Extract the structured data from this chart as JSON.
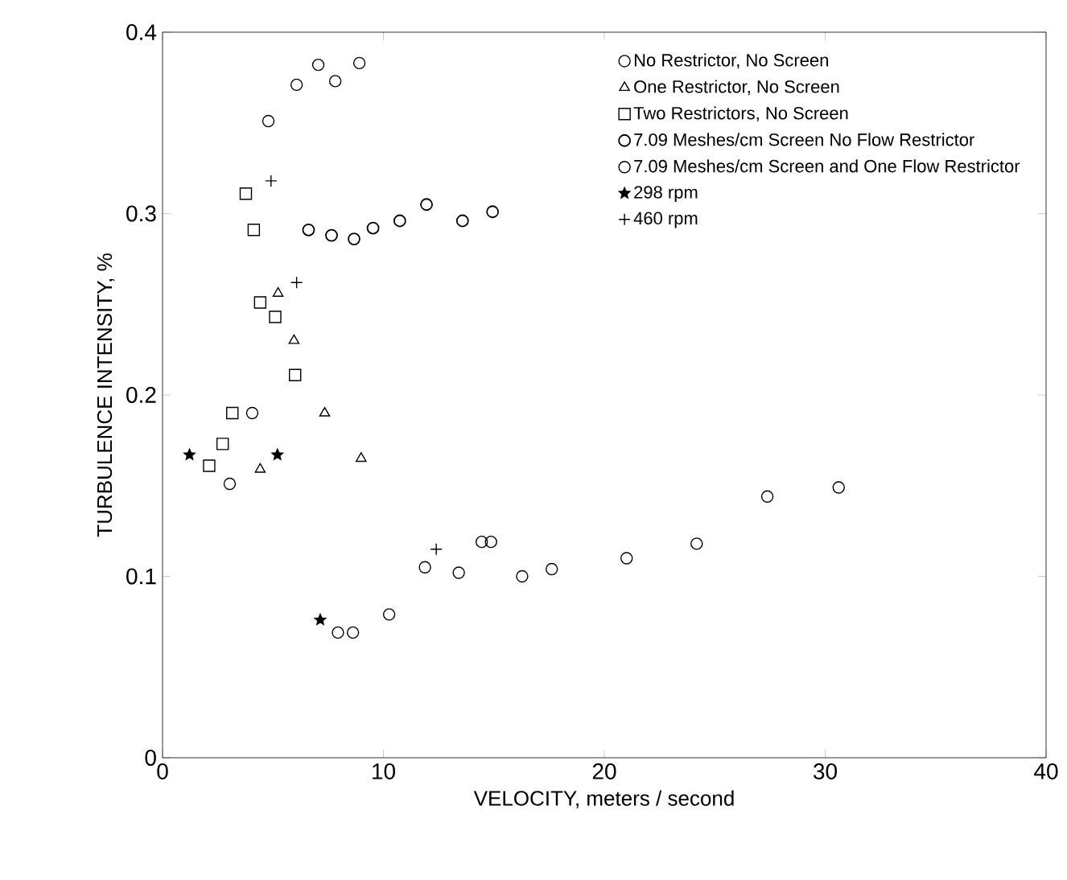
{
  "chart_data": {
    "type": "scatter",
    "xlabel": "VELOCITY, meters / second",
    "ylabel": "TURBULENCE INTENSITY, %",
    "xlim": [
      0,
      40
    ],
    "ylim": [
      0,
      0.4
    ],
    "xticks": [
      0,
      10,
      20,
      30,
      40
    ],
    "yticks": [
      0,
      0.1,
      0.2,
      0.3,
      0.4
    ],
    "grid": false,
    "legend": "top right",
    "series": [
      {
        "name": "No Restrictor, No Screen",
        "color": "#000000",
        "marker": "circle",
        "x": [
          7.94,
          8.62,
          10.26,
          11.88,
          13.41,
          14.45,
          14.87,
          16.28,
          17.62,
          21.01,
          24.18,
          27.38,
          30.61
        ],
        "values": [
          0.069,
          0.069,
          0.079,
          0.105,
          0.102,
          0.119,
          0.119,
          0.1,
          0.104,
          0.11,
          0.118,
          0.144,
          0.149
        ]
      },
      {
        "name": "One Restrictor, No Screen",
        "color": "#000000",
        "marker": "triangle",
        "x": [
          5.23,
          5.95,
          7.34,
          4.42,
          8.99
        ],
        "values": [
          0.256,
          0.23,
          0.19,
          0.159,
          0.165
        ]
      },
      {
        "name": "Two Restrictors, No Screen",
        "color": "#000000",
        "marker": "square",
        "x": [
          3.77,
          4.13,
          4.42,
          5.1,
          6.0,
          3.16,
          2.72,
          2.11
        ],
        "values": [
          0.311,
          0.291,
          0.251,
          0.243,
          0.211,
          0.19,
          0.173,
          0.161
        ]
      },
      {
        "name": "7.09 Meshes/cm Screen No Flow Restrictor",
        "color": "#000000",
        "marker": "circle",
        "x": [
          6.61,
          7.65,
          8.67,
          9.53,
          10.74,
          11.95,
          13.58,
          14.94
        ],
        "values": [
          0.291,
          0.288,
          0.286,
          0.292,
          0.296,
          0.305,
          0.296,
          0.301
        ]
      },
      {
        "name": "7.09 Meshes/cm Screen and One Flow Restrictor",
        "color": "#000000",
        "marker": "circle",
        "x": [
          4.79,
          6.07,
          7.05,
          7.82,
          8.91,
          4.06,
          3.04
        ],
        "values": [
          0.351,
          0.371,
          0.382,
          0.373,
          0.383,
          0.19,
          0.151
        ]
      },
      {
        "name": "298 rpm",
        "color": "#000000",
        "marker": "star",
        "x": [
          1.22,
          5.2,
          7.14
        ],
        "values": [
          0.167,
          0.167,
          0.076
        ]
      },
      {
        "name": "460 rpm",
        "color": "#000000",
        "marker": "cross",
        "x": [
          4.91,
          6.07,
          12.39
        ],
        "values": [
          0.318,
          0.262,
          0.115
        ]
      }
    ]
  }
}
